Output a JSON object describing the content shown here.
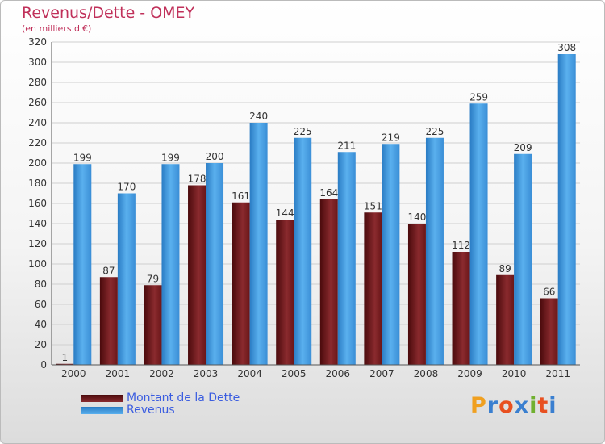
{
  "chart_data": {
    "type": "bar",
    "title": "Revenus/Dette - OMEY",
    "subtitle": "(en milliers d'€)",
    "categories": [
      "2000",
      "2001",
      "2002",
      "2003",
      "2004",
      "2005",
      "2006",
      "2007",
      "2008",
      "2009",
      "2010",
      "2011"
    ],
    "series": [
      {
        "name": "Montant de la Dette",
        "color": "#7a1e22",
        "values": [
          1,
          87,
          79,
          178,
          161,
          144,
          164,
          151,
          140,
          112,
          89,
          66
        ]
      },
      {
        "name": "Revenus",
        "color": "#4aa3e6",
        "values": [
          199,
          170,
          199,
          200,
          240,
          225,
          211,
          219,
          225,
          259,
          209,
          308
        ]
      }
    ],
    "ylim": [
      0,
      320
    ],
    "yticks": [
      0,
      20,
      40,
      60,
      80,
      100,
      120,
      140,
      160,
      180,
      200,
      220,
      240,
      260,
      280,
      300,
      320
    ],
    "grid": true,
    "legend_position": "bottom-left"
  },
  "brand": {
    "letters": [
      "P",
      "r",
      "o",
      "x",
      "i",
      "t",
      "i"
    ],
    "colors": [
      "#f0a020",
      "#3a7fd0",
      "#e85020",
      "#3a7fd0",
      "#70b030",
      "#e85020",
      "#3a7fd0"
    ]
  }
}
